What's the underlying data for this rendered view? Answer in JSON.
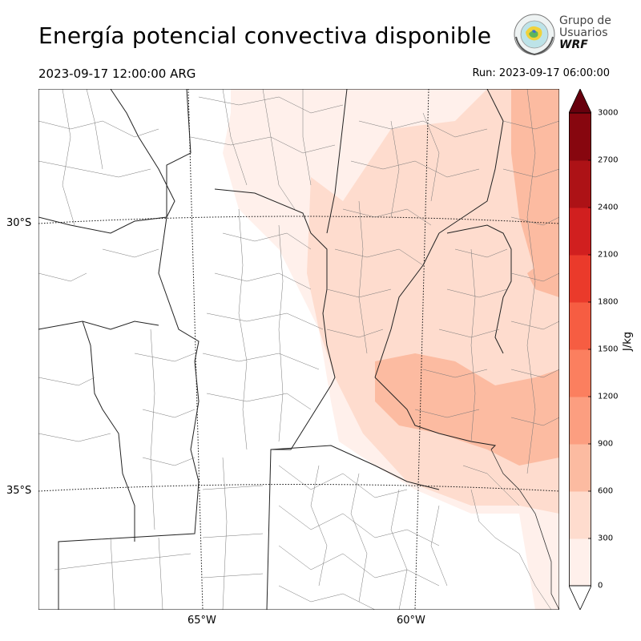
{
  "header": {
    "title": "Energía potencial convectiva disponible",
    "valid_time": "2023-09-17 12:00:00 ARG",
    "run_time": "Run: 2023-09-17 06:00:00"
  },
  "logo": {
    "line1": "Grupo de",
    "line2": "Usuarios",
    "line3": "WRF",
    "icon": "globe-emblem-icon"
  },
  "map": {
    "lat_labels": [
      "30°S",
      "35°S"
    ],
    "lon_labels": [
      "65°W",
      "60°W"
    ],
    "field": "CAPE",
    "region": "Centro-norte de Argentina"
  },
  "colorbar": {
    "unit": "J/kg",
    "ticks": [
      "0",
      "300",
      "600",
      "900",
      "1200",
      "1500",
      "1800",
      "2100",
      "2400",
      "2700",
      "3000"
    ],
    "colors": [
      "#fff0eb",
      "#fedcce",
      "#fcbba1",
      "#fc9e80",
      "#fb7f5f",
      "#f65d42",
      "#ea3a2b",
      "#d11f1f",
      "#ad1216",
      "#87060f"
    ],
    "extend_color": "#67000d"
  }
}
